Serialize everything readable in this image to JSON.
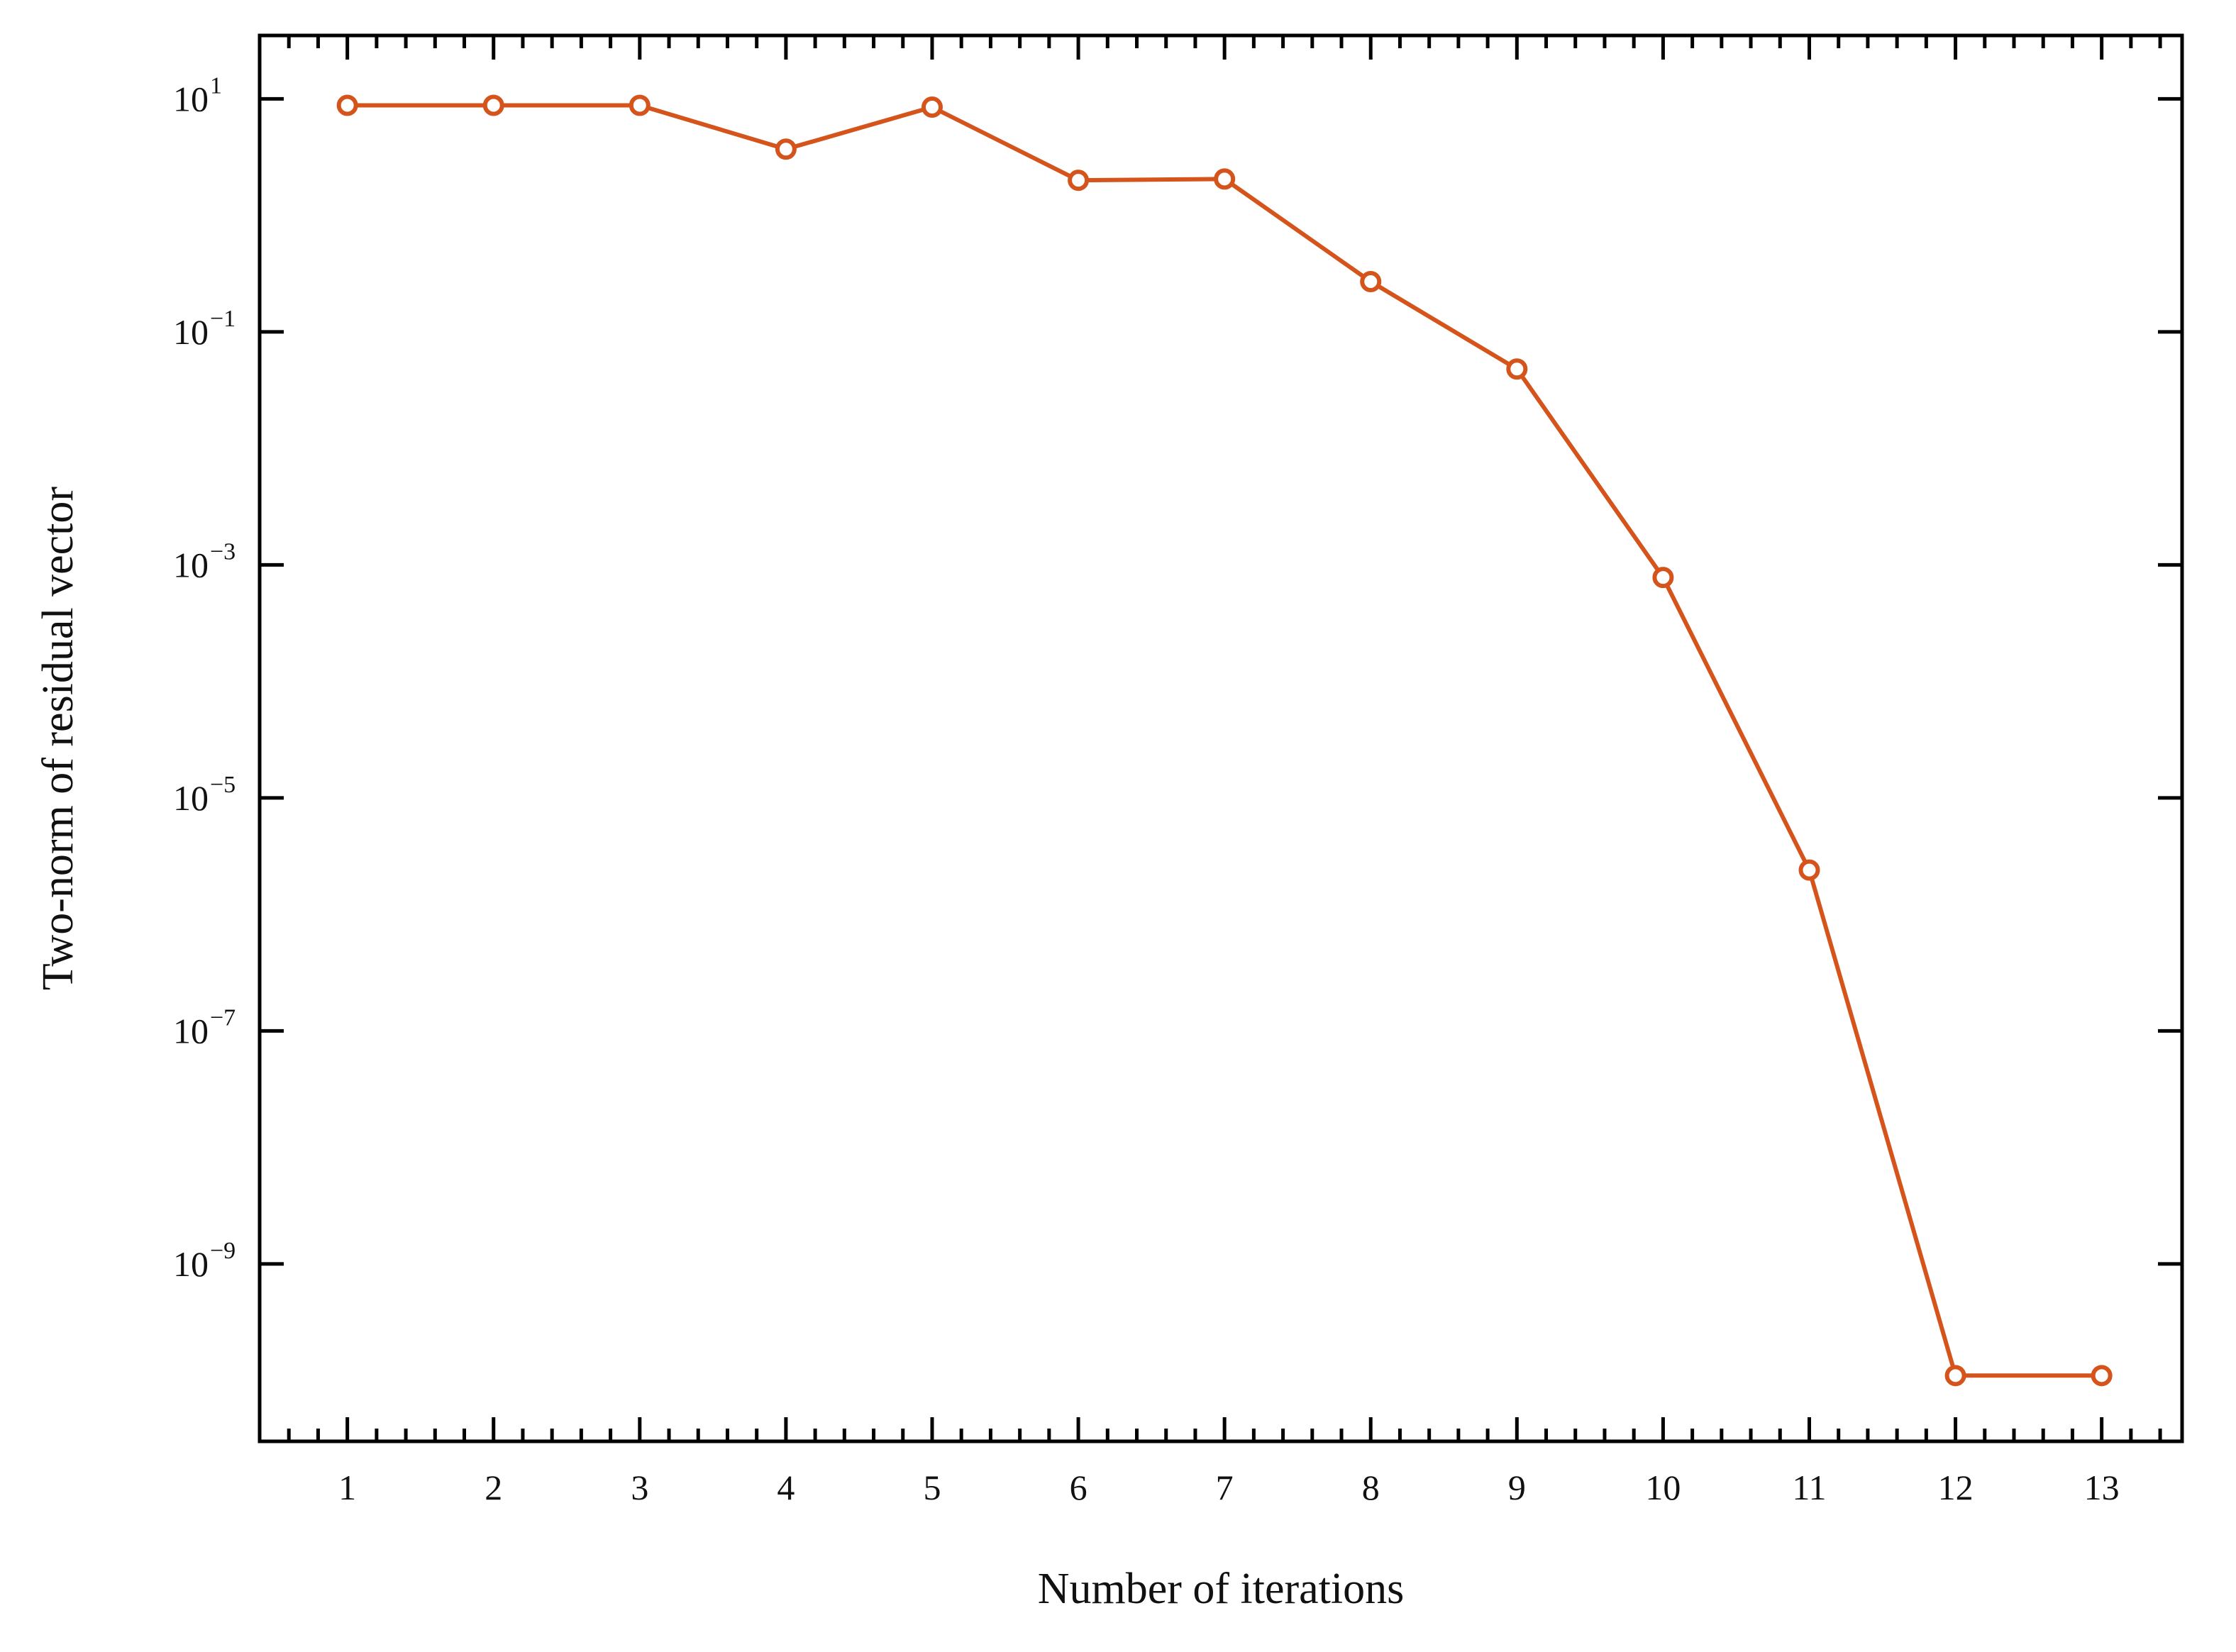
{
  "chart_data": {
    "type": "line",
    "title": "",
    "xlabel": "Number of iterations",
    "ylabel": "Two-norm of residual vector",
    "x": [
      1,
      2,
      3,
      4,
      5,
      6,
      7,
      8,
      9,
      10,
      11,
      12,
      13
    ],
    "series": [
      {
        "values": [
          8.8,
          8.8,
          8.8,
          3.7,
          8.5,
          2.0,
          2.05,
          0.27,
          0.048,
          0.00078,
          2.4e-06,
          1.1e-10,
          1.1e-10
        ],
        "color": "#d4541c",
        "marker": "open-circle"
      }
    ],
    "xlim": [
      0.4,
      13.55
    ],
    "ylim": [
      3e-11,
      35
    ],
    "y_scale": "log",
    "x_ticks": [
      {
        "value": 1,
        "label": "1"
      },
      {
        "value": 2,
        "label": "2"
      },
      {
        "value": 3,
        "label": "3"
      },
      {
        "value": 4,
        "label": "4"
      },
      {
        "value": 5,
        "label": "5"
      },
      {
        "value": 6,
        "label": "6"
      },
      {
        "value": 7,
        "label": "7"
      },
      {
        "value": 8,
        "label": "8"
      },
      {
        "value": 9,
        "label": "9"
      },
      {
        "value": 10,
        "label": "10"
      },
      {
        "value": 11,
        "label": "11"
      },
      {
        "value": 12,
        "label": "12"
      },
      {
        "value": 13,
        "label": "13"
      }
    ],
    "x_minor_step": 0.2,
    "y_ticks": [
      {
        "value": 10,
        "base": "10",
        "exp": "1"
      },
      {
        "value": 0.1,
        "base": "10",
        "exp": "−1"
      },
      {
        "value": 0.001,
        "base": "10",
        "exp": "−3"
      },
      {
        "value": 1e-05,
        "base": "10",
        "exp": "−5"
      },
      {
        "value": 1e-07,
        "base": "10",
        "exp": "−7"
      },
      {
        "value": 1e-09,
        "base": "10",
        "exp": "−9"
      }
    ],
    "grid": false,
    "legend": "none",
    "tick_direction": "in",
    "mirror_ticks": true
  }
}
